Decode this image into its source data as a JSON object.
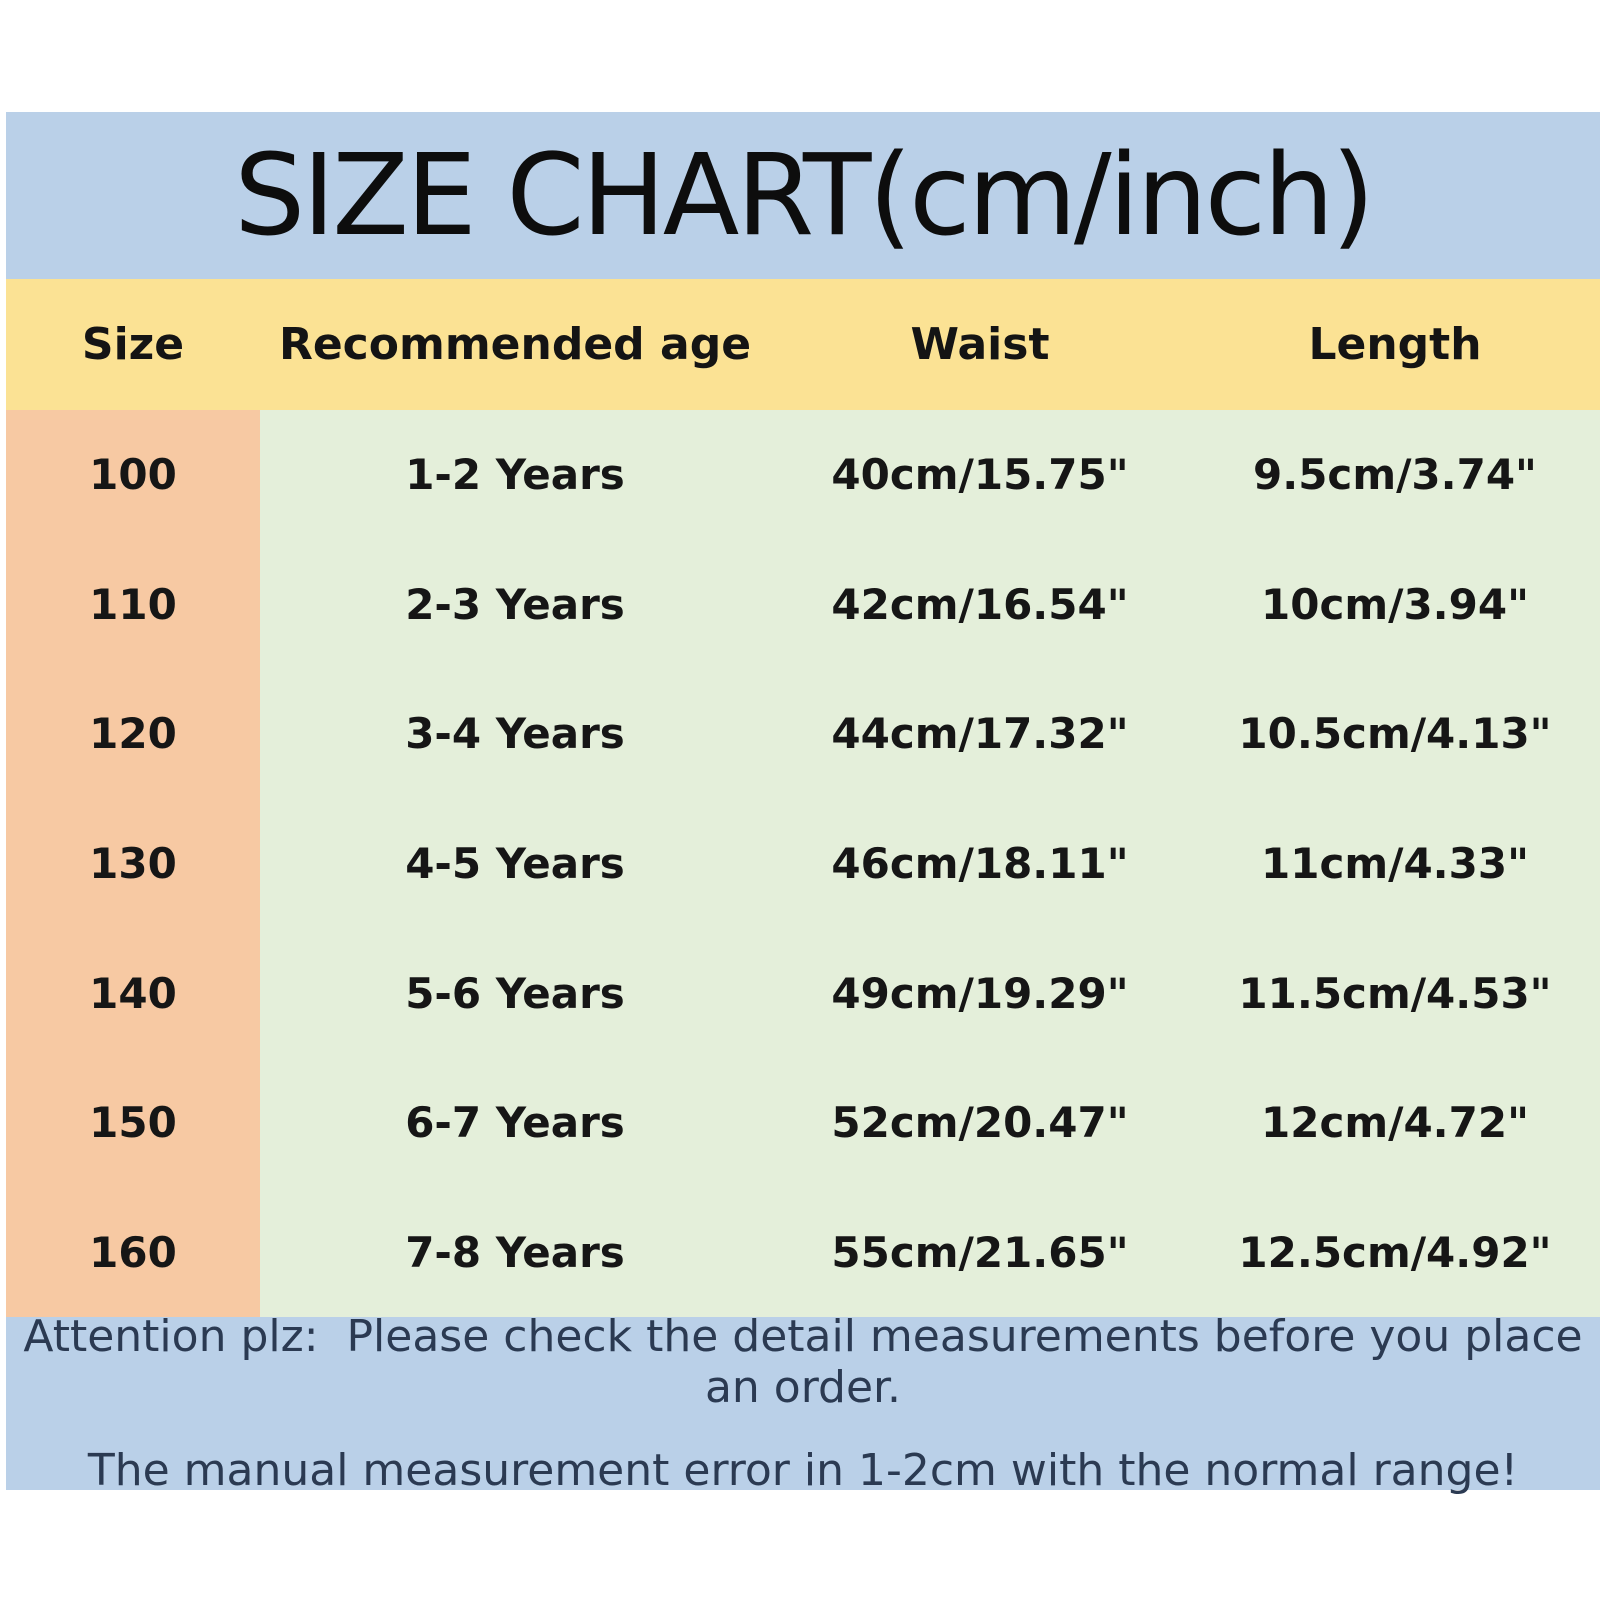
{
  "chart_data": {
    "type": "table",
    "title": "SIZE CHART(cm/inch)",
    "columns": [
      "Size",
      "Recommended age",
      "Waist",
      "Length"
    ],
    "rows": [
      [
        "100",
        "1-2 Years",
        "40cm/15.75\"",
        "9.5cm/3.74\""
      ],
      [
        "110",
        "2-3 Years",
        "42cm/16.54\"",
        "10cm/3.94\""
      ],
      [
        "120",
        "3-4 Years",
        "44cm/17.32\"",
        "10.5cm/4.13\""
      ],
      [
        "130",
        "4-5 Years",
        "46cm/18.11\"",
        "11cm/4.33\""
      ],
      [
        "140",
        "5-6 Years",
        "49cm/19.29\"",
        "11.5cm/4.53\""
      ],
      [
        "150",
        "6-7 Years",
        "52cm/20.47\"",
        "12cm/4.72\""
      ],
      [
        "160",
        "7-8 Years",
        "55cm/21.65\"",
        "12.5cm/4.92\""
      ]
    ],
    "notes": [
      "Attention plz:  Please check the detail measurements before you place an order.",
      "The manual measurement error in 1-2cm with the normal range!"
    ]
  },
  "colors": {
    "title_band": "#bad0e8",
    "header_band": "#fbe294",
    "size_column": "#f7c9a3",
    "body_background": "#e4efda",
    "footer_band": "#bad0e8",
    "footer_text": "#2b3a52",
    "table_text": "#161616"
  }
}
